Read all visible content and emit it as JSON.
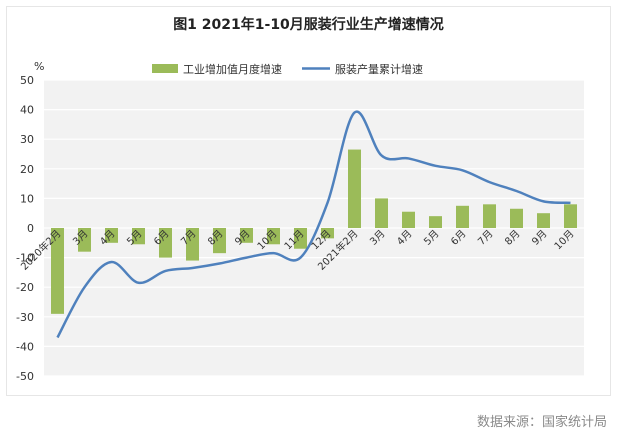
{
  "header": {
    "title": "图1  2021年1-10月服装行业生产增速情况"
  },
  "footer": {
    "source": "数据来源：国家统计局"
  },
  "colors": {
    "bar": "#9bbb59",
    "line": "#4f81bd",
    "plot_bg": "#f2f2f2",
    "grid": "#ffffff"
  },
  "chart_data": {
    "type": "bar",
    "title": "图1  2021年1-10月服装行业生产增速情况",
    "ylabel": "%",
    "ylim": [
      -50,
      50
    ],
    "yticks": [
      50,
      40,
      30,
      20,
      10,
      0,
      -10,
      -20,
      -30,
      -40,
      -50
    ],
    "legend_position": "top",
    "categories": [
      "2020年2月",
      "3月",
      "4月",
      "5月",
      "6月",
      "7月",
      "8月",
      "9月",
      "10月",
      "11月",
      "12月",
      "2021年2月",
      "3月",
      "4月",
      "5月",
      "6月",
      "7月",
      "8月",
      "9月",
      "10月"
    ],
    "series": [
      {
        "name": "工业增加值月度增速",
        "type": "bar",
        "values": [
          -29,
          -8,
          -5,
          -5.5,
          -10,
          -11,
          -8.5,
          -5,
          -5.5,
          -7,
          -3.5,
          26.5,
          10,
          5.5,
          4,
          7.5,
          8,
          6.5,
          5,
          8
        ]
      },
      {
        "name": "服装产量累计增速",
        "type": "line",
        "values": [
          -37,
          -20,
          -11.5,
          -18.5,
          -14.5,
          -13.5,
          -12,
          -10,
          -8.5,
          -10,
          8.5,
          39,
          24.5,
          23.5,
          21,
          19.5,
          15.5,
          12.5,
          9,
          8.5
        ]
      }
    ]
  }
}
